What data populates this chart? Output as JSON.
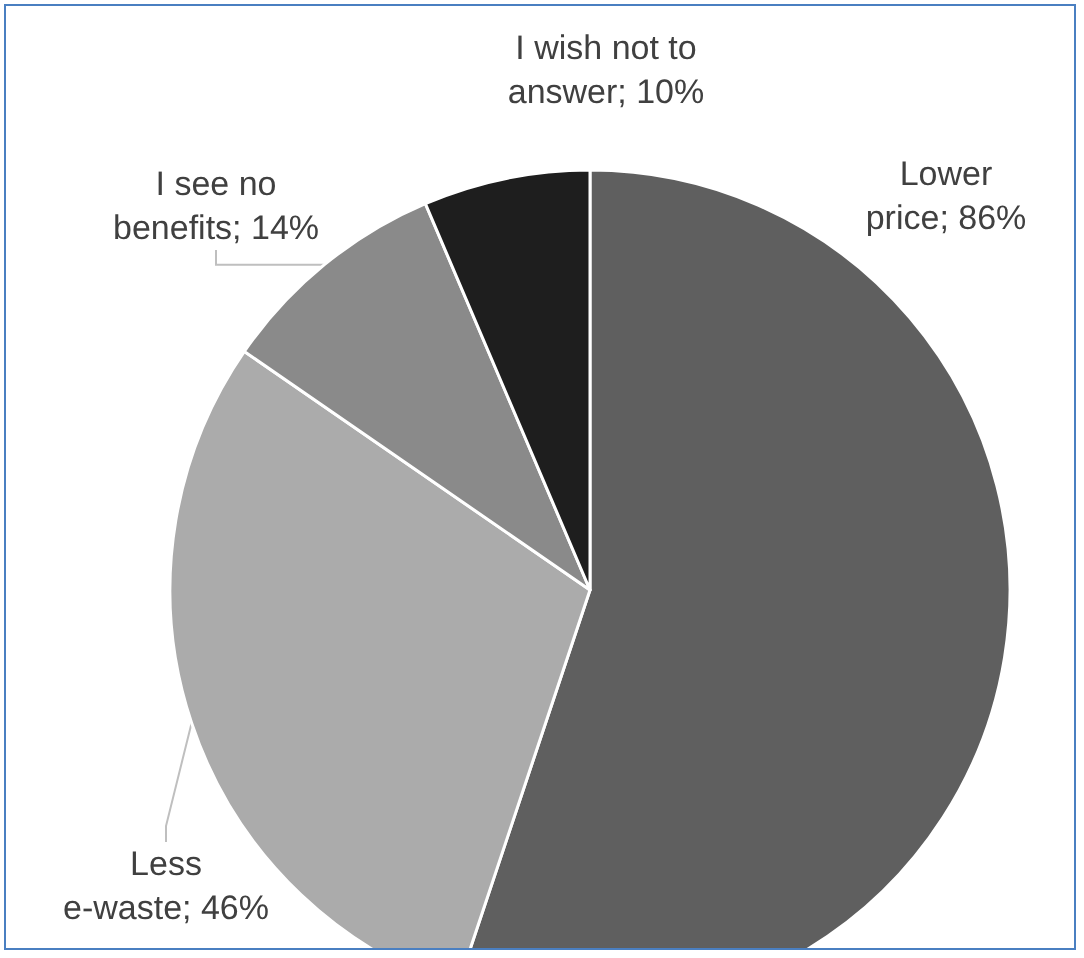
{
  "chart_data": {
    "type": "pie",
    "categories": [
      "Lower price",
      "Less e-waste",
      "I see no benefits",
      "I wish not to answer"
    ],
    "values": [
      86,
      46,
      14,
      10
    ],
    "value_labels": [
      "86%",
      "46%",
      "14%",
      "10%"
    ],
    "colors": [
      "#5f5f5f",
      "#ababab",
      "#8a8a8a",
      "#1e1e1e"
    ],
    "legend": false
  }
}
